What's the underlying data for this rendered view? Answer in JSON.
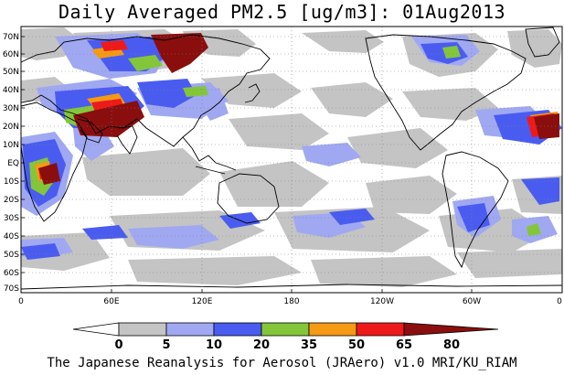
{
  "title": "Daily Averaged PM2.5 [ug/m3]: 01Aug2013",
  "footer": "The Japanese Reanalysis for Aerosol (JRAero) v1.0 MRI/KU_RIAM",
  "map": {
    "lat_labels": [
      "70N",
      "60N",
      "50N",
      "40N",
      "30N",
      "20N",
      "10N",
      "EQ",
      "10S",
      "20S",
      "30S",
      "40S",
      "50S",
      "60S",
      "70S"
    ],
    "lon_labels": [
      "0",
      "60E",
      "120E",
      "180",
      "120W",
      "60W",
      "0"
    ]
  },
  "colorbar": {
    "ticks": [
      "0",
      "5",
      "10",
      "20",
      "35",
      "50",
      "65",
      "80"
    ],
    "colors": [
      "#ffffff",
      "#c4c4c4",
      "#a0a8f2",
      "#4a5cf0",
      "#84c63a",
      "#f49a14",
      "#ee1a1a",
      "#8a0e0e"
    ]
  }
}
